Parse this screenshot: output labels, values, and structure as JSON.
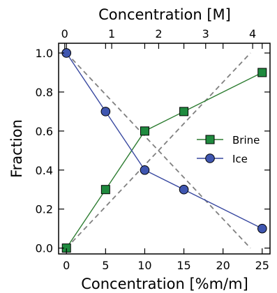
{
  "chart_data": {
    "type": "line",
    "xlabel": "Concentration [%m/m]",
    "ylabel": "Fraction",
    "x2label": "Concentration [M]",
    "xlim": [
      -1,
      26
    ],
    "ylim": [
      -0.03,
      1.05
    ],
    "x2lim": [
      -0.13,
      4.37
    ],
    "x_ticks": [
      0,
      5,
      10,
      15,
      20,
      25
    ],
    "y_ticks": [
      0.0,
      0.2,
      0.4,
      0.6,
      0.8,
      1.0
    ],
    "y_tick_labels": [
      "0.0",
      "0.2",
      "0.4",
      "0.6",
      "0.8",
      "1.0"
    ],
    "x2_ticks": [
      0,
      1,
      2,
      3,
      4
    ],
    "x": [
      0,
      5,
      10,
      15,
      25
    ],
    "series": [
      {
        "name": "Brine",
        "values": [
          0.0,
          0.3,
          0.6,
          0.7,
          0.9
        ],
        "color": "#2e7d32",
        "marker": "square"
      },
      {
        "name": "Ice",
        "values": [
          1.0,
          0.7,
          0.4,
          0.3,
          0.1
        ],
        "color": "#3848a0",
        "marker": "circle"
      }
    ],
    "reference_lines": [
      {
        "x": [
          0,
          23.5
        ],
        "y": [
          1.0,
          0.0
        ],
        "style": "dashed",
        "color": "#808080"
      },
      {
        "x": [
          0,
          23.5
        ],
        "y": [
          0.0,
          1.0
        ],
        "style": "dashed",
        "color": "#808080"
      }
    ],
    "legend_position": "center-right",
    "grid": false,
    "colors": {
      "brine": "#2e7d32",
      "brine_marker": "#1f8a3e",
      "ice": "#3848a0",
      "ice_marker": "#3f56b0",
      "reference": "#808080"
    }
  }
}
